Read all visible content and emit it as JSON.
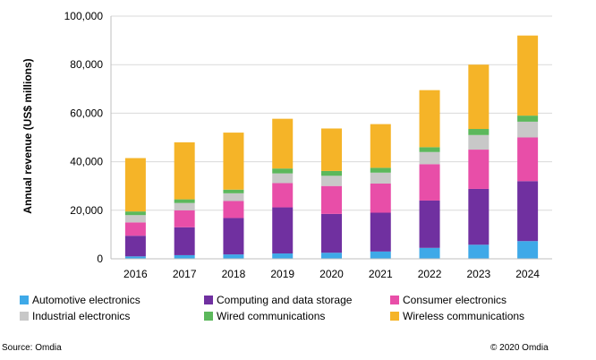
{
  "chart_data": {
    "type": "bar",
    "stacked": true,
    "ylabel": "Annual revenue (US$ millions)",
    "ylim": [
      0,
      100000
    ],
    "yticks": [
      "0",
      "20,000",
      "40,000",
      "60,000",
      "80,000",
      "100,000"
    ],
    "categories": [
      "2016",
      "2017",
      "2018",
      "2019",
      "2020",
      "2021",
      "2022",
      "2023",
      "2024"
    ],
    "series": [
      {
        "name": "Automotive electronics",
        "color": "#3ea9e8",
        "values": [
          1000,
          1500,
          1800,
          2200,
          2500,
          3000,
          4500,
          5800,
          7300
        ]
      },
      {
        "name": "Computing and data storage",
        "color": "#7030a0",
        "values": [
          8500,
          11500,
          15000,
          19000,
          16000,
          16000,
          19500,
          23000,
          24700
        ]
      },
      {
        "name": "Consumer electronics",
        "color": "#e84ea8",
        "values": [
          5500,
          7000,
          7000,
          10000,
          11500,
          12000,
          15000,
          16200,
          18000
        ]
      },
      {
        "name": "Industrial electronics",
        "color": "#c8c8c8",
        "values": [
          3000,
          3000,
          3200,
          4000,
          4200,
          4500,
          5000,
          6000,
          6500
        ]
      },
      {
        "name": "Wired communications",
        "color": "#5cb85c",
        "values": [
          1500,
          1500,
          1500,
          2000,
          2000,
          2000,
          2000,
          2500,
          2500
        ]
      },
      {
        "name": "Wireless communications",
        "color": "#f5b428",
        "values": [
          22000,
          23500,
          23500,
          20500,
          17500,
          18000,
          23500,
          26500,
          33000
        ]
      }
    ]
  },
  "footer": {
    "source": "Source: Omdia",
    "copyright": "© 2020 Omdia"
  }
}
